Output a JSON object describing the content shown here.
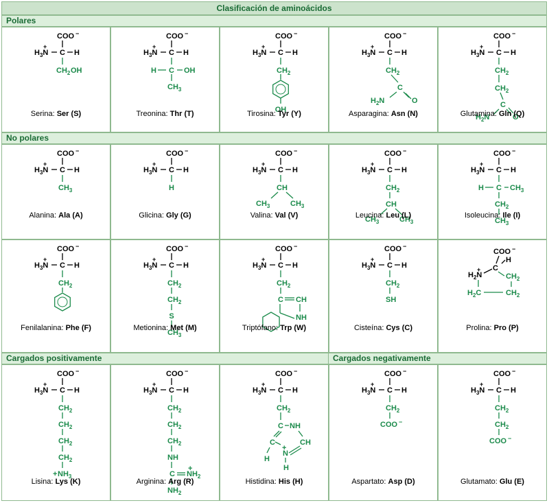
{
  "title": "Clasificación de aminoácidos",
  "sections": {
    "polares": "Polares",
    "no_polares": "No polares",
    "positivos": "Cargados positivamente",
    "negativos": "Cargados negativamente"
  },
  "amino_acids": [
    {
      "name": "Serina",
      "abbr3": "Ser",
      "abbr1": "(S)"
    },
    {
      "name": "Treonina",
      "abbr3": "Thr",
      "abbr1": "(T)"
    },
    {
      "name": "Tirosina",
      "abbr3": "Tyr",
      "abbr1": "(Y)"
    },
    {
      "name": "Asparagina",
      "abbr3": "Asn",
      "abbr1": "(N)"
    },
    {
      "name": "Glutamina",
      "abbr3": "Gln",
      "abbr1": "(Q)"
    },
    {
      "name": "Alanina",
      "abbr3": "Ala",
      "abbr1": "(A)"
    },
    {
      "name": "Glicina",
      "abbr3": "Gly",
      "abbr1": "(G)"
    },
    {
      "name": "Valina",
      "abbr3": "Val",
      "abbr1": "(V)"
    },
    {
      "name": "Leucina",
      "abbr3": "Leu",
      "abbr1": "(L)"
    },
    {
      "name": "Isoleucina",
      "abbr3": "Ile",
      "abbr1": "(I)"
    },
    {
      "name": "Fenilalanina",
      "abbr3": "Phe",
      "abbr1": "(F)"
    },
    {
      "name": "Metionina",
      "abbr3": "Met",
      "abbr1": "(M)"
    },
    {
      "name": "Triptófano",
      "abbr3": "Trp",
      "abbr1": "(W)"
    },
    {
      "name": "Cisteína",
      "abbr3": "Cys",
      "abbr1": "(C)"
    },
    {
      "name": "Prolina",
      "abbr3": "Pro",
      "abbr1": "(P)"
    },
    {
      "name": "Lisina",
      "abbr3": "Lys",
      "abbr1": "(K)"
    },
    {
      "name": "Arginina",
      "abbr3": "Arg",
      "abbr1": "(R)"
    },
    {
      "name": "Histidina",
      "abbr3": "His",
      "abbr1": "(H)"
    },
    {
      "name": "Aspartato",
      "abbr3": "Asp",
      "abbr1": "(D)"
    },
    {
      "name": "Glutamato",
      "abbr3": "Glu",
      "abbr1": "(E)"
    }
  ],
  "labels": {
    "carboxylate": "COO",
    "amine": "H3N",
    "carbon": "C",
    "hydrogen": "H",
    "plus": "+",
    "minus": "−",
    "ch2": "CH2",
    "ch3": "CH3",
    "ch": "CH",
    "oh": "OH",
    "sh": "SH",
    "s": "S",
    "o": "O",
    "h2n": "H2N",
    "nh": "NH",
    "nh2": "NH2",
    "nh3": "NH3"
  },
  "colors": {
    "green": "#1a8a4a",
    "border": "#8fb98f",
    "header_bg": "#cce3cc",
    "section_bg": "#dcefdc",
    "black": "#000000"
  }
}
